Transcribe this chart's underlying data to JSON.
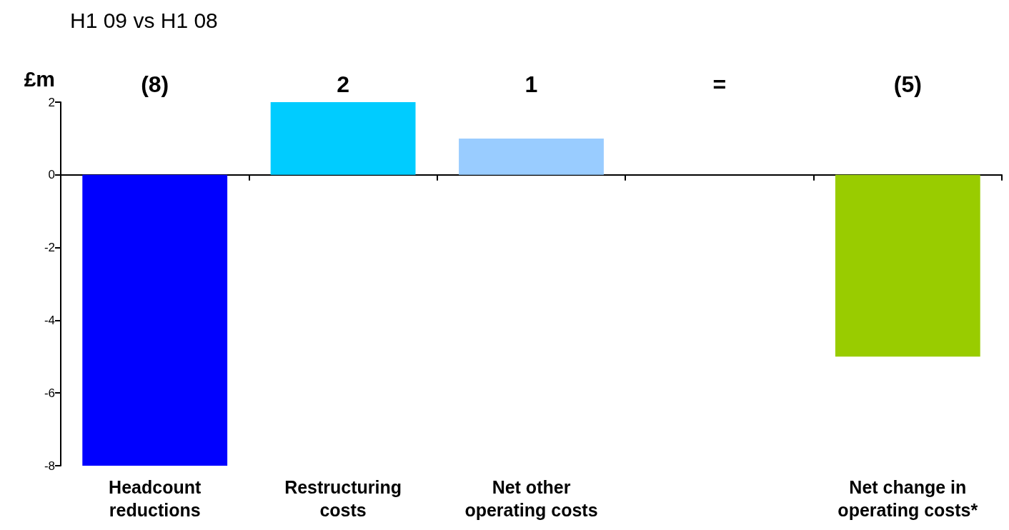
{
  "chart_data": {
    "type": "bar",
    "title": "H1 09 vs H1 08",
    "ylabel": "£m",
    "categories": [
      "Headcount reductions",
      "Restructuring costs",
      "Net other operating costs",
      null,
      "Net change in operating costs*"
    ],
    "values": [
      -8,
      2,
      1,
      null,
      -5
    ],
    "colors": [
      "#0000ff",
      "#00ccff",
      "#99ccff",
      null,
      "#99cc00"
    ],
    "annotations": [
      "(8)",
      "2",
      "1",
      "=",
      "(5)"
    ],
    "ylim": [
      -8,
      2
    ],
    "yticks": [
      -8,
      -6,
      -4,
      -2,
      0,
      2
    ]
  }
}
